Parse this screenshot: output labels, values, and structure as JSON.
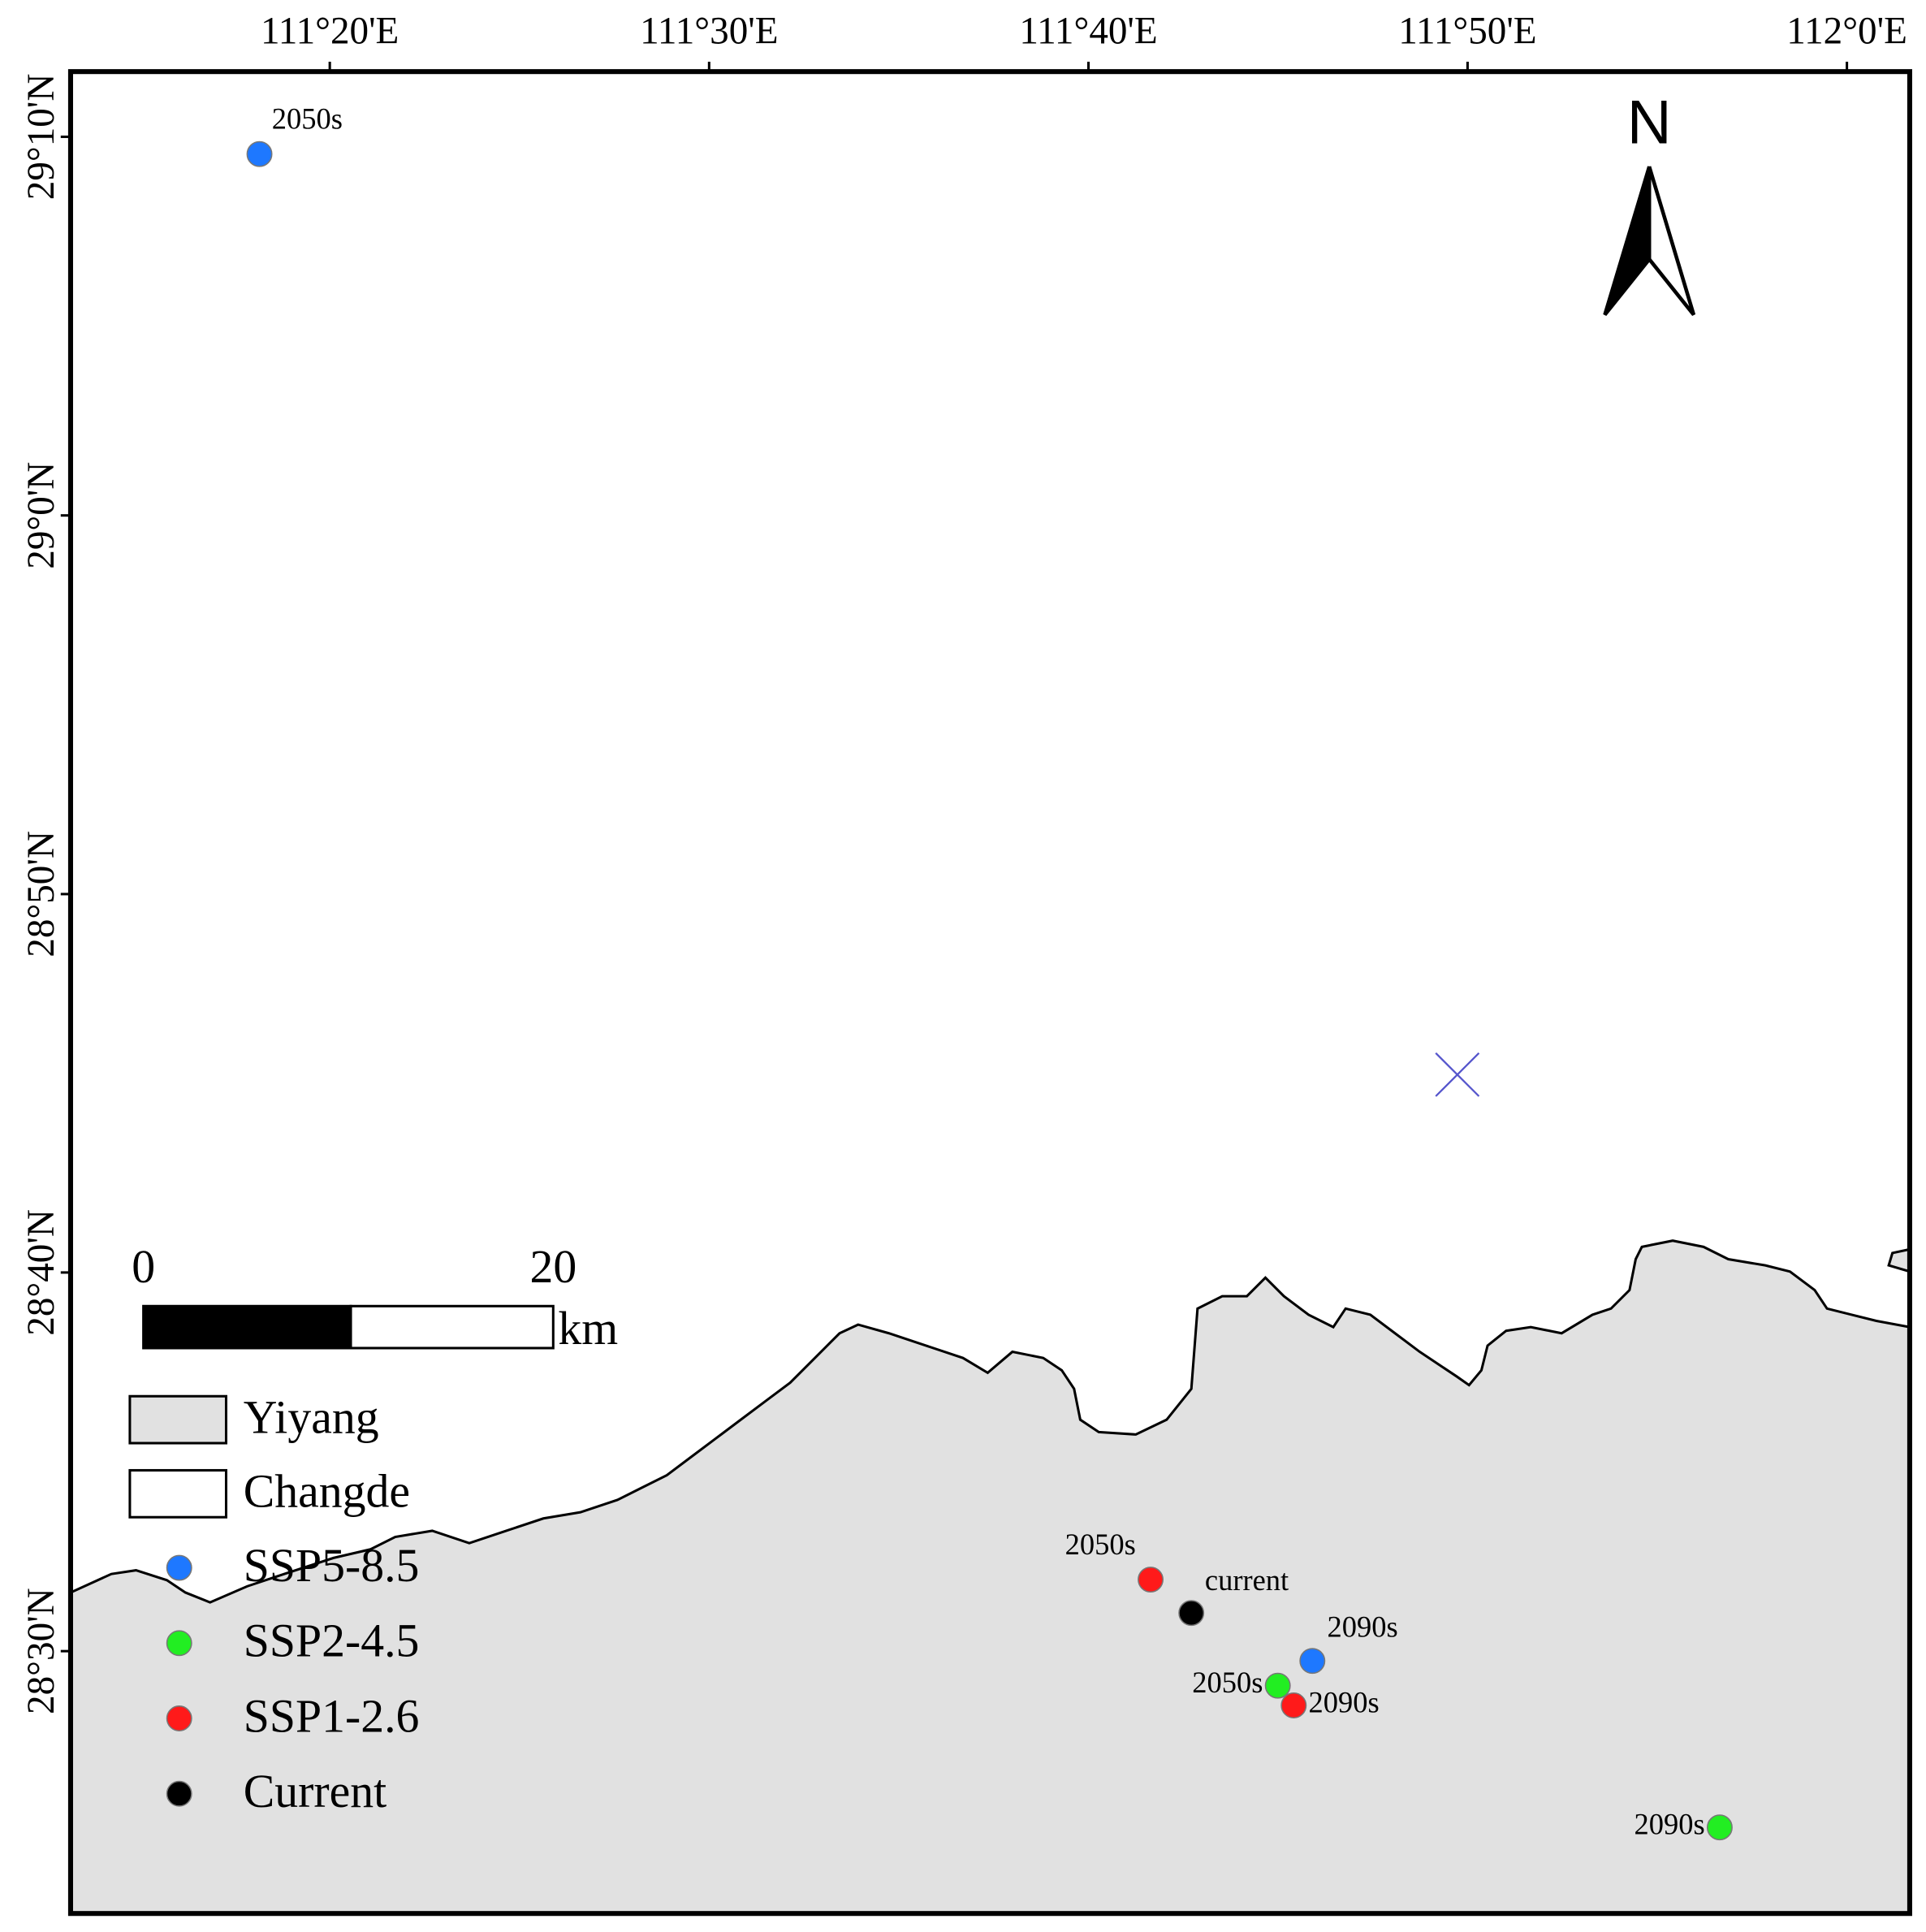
{
  "map": {
    "type": "map",
    "xlim": [
      111.2194,
      112.0276
    ],
    "ylim": [
      28.3845,
      29.1954
    ],
    "xticks": [
      {
        "value": 111.3333,
        "label": "111°20'E"
      },
      {
        "value": 111.5,
        "label": "111°30'E"
      },
      {
        "value": 111.6667,
        "label": "111°40'E"
      },
      {
        "value": 111.8333,
        "label": "111°50'E"
      },
      {
        "value": 112,
        "label": "112°0'E"
      }
    ],
    "yticks": [
      {
        "value": 28.5,
        "label": "28°30'N"
      },
      {
        "value": 28.6667,
        "label": "28°40'N"
      },
      {
        "value": 28.8333,
        "label": "28°50'N"
      },
      {
        "value": 29,
        "label": "29°0'N"
      },
      {
        "value": 29.1667,
        "label": "29°10'N"
      }
    ],
    "regions": [
      {
        "name": "Yiyang",
        "color": "#e1e1e1"
      },
      {
        "name": "Changde",
        "color": "#ffffff"
      }
    ],
    "series": [
      {
        "name": "SSP5-8.5",
        "color": "#1e78ff",
        "points": [
          {
            "x": 111.3024,
            "y": 29.1591,
            "label": "2050s"
          },
          {
            "x": 111.7651,
            "y": 28.4957,
            "label": "2090s"
          }
        ]
      },
      {
        "name": "SSP2-4.5",
        "color": "#22ee22",
        "points": [
          {
            "x": 111.7499,
            "y": 28.4848,
            "label": "2050s"
          },
          {
            "x": 111.9441,
            "y": 28.4224,
            "label": "2090s"
          }
        ]
      },
      {
        "name": "SSP1-2.6",
        "color": "#ff1a1a",
        "points": [
          {
            "x": 111.694,
            "y": 28.5315,
            "label": "2050s"
          },
          {
            "x": 111.7569,
            "y": 28.4761,
            "label": "2090s"
          }
        ]
      },
      {
        "name": "Current",
        "color": "#000000",
        "points": [
          {
            "x": 111.7119,
            "y": 28.5168,
            "label": "current"
          }
        ]
      }
    ],
    "scale_bar": {
      "ticks": [
        0,
        20
      ],
      "unit": "km"
    },
    "north": "N"
  }
}
